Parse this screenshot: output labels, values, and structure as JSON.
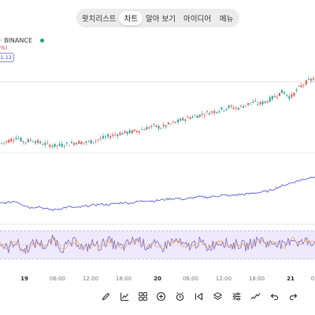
{
  "tabs": [
    {
      "label": "왓치리스트",
      "active": false
    },
    {
      "label": "차트",
      "active": true
    },
    {
      "label": "알아 보기",
      "active": false
    },
    {
      "label": "아이디어",
      "active": false
    },
    {
      "label": "메뉴",
      "active": false
    }
  ],
  "symbol": {
    "exchange_label": "· BINANCE",
    "change_text": "%)",
    "price_label": "1.12",
    "live_color": "#1aa37a"
  },
  "time_axis": {
    "ticks": [
      {
        "label": "19",
        "bold": true
      },
      {
        "label": "06:00",
        "bold": false
      },
      {
        "label": "12:00",
        "bold": false
      },
      {
        "label": "18:00",
        "bold": false
      },
      {
        "label": "20",
        "bold": true
      },
      {
        "label": "06:00",
        "bold": false
      },
      {
        "label": "12:00",
        "bold": false
      },
      {
        "label": "18:00",
        "bold": false
      },
      {
        "label": "21",
        "bold": true
      },
      {
        "label": "0",
        "bold": false
      }
    ]
  },
  "toolbar": {
    "icons": [
      "pencil-icon",
      "trend-chart-icon",
      "grid-icon",
      "add-circle-icon",
      "alarm-clock-icon",
      "replay-icon",
      "layers-icon",
      "sliders-icon",
      "indicator-wave-icon",
      "undo-icon",
      "redo-icon"
    ]
  },
  "colors": {
    "up": "#26a69a",
    "down": "#ef5350",
    "indicator_line": "#5b5bd6",
    "rsi_band": "#ece6fb",
    "rsi_line": "#6a5acd"
  },
  "chart_data": {
    "type": "line",
    "title": "",
    "series": [
      {
        "values": [
          10,
          14,
          18,
          12,
          15,
          11,
          9,
          7,
          8,
          10,
          12,
          11,
          13,
          16,
          19,
          22,
          24,
          25,
          27,
          30,
          33,
          31,
          35,
          38,
          42,
          45,
          47,
          50,
          52,
          55,
          58,
          56,
          60,
          64,
          62,
          66,
          72,
          78,
          70,
          82,
          90,
          95
        ]
      },
      {
        "values": [
          20,
          22,
          25,
          18,
          12,
          15,
          10,
          8,
          11,
          14,
          12,
          15,
          17,
          19,
          18,
          20,
          22,
          21,
          24,
          26,
          25,
          27,
          29,
          30,
          28,
          31,
          33,
          32,
          34,
          36,
          35,
          37,
          38,
          40,
          42,
          44,
          50,
          55,
          60,
          64,
          68,
          72
        ]
      },
      {
        "values": [
          55,
          40,
          62,
          35,
          50,
          58,
          45,
          68,
          42,
          52,
          60,
          38,
          55,
          47,
          63,
          50,
          44,
          58,
          66,
          48,
          53,
          41,
          57,
          62,
          46,
          51,
          59,
          43,
          55,
          61,
          49,
          54,
          47,
          58,
          65,
          52,
          60,
          45,
          70,
          55,
          62,
          58
        ]
      }
    ]
  }
}
